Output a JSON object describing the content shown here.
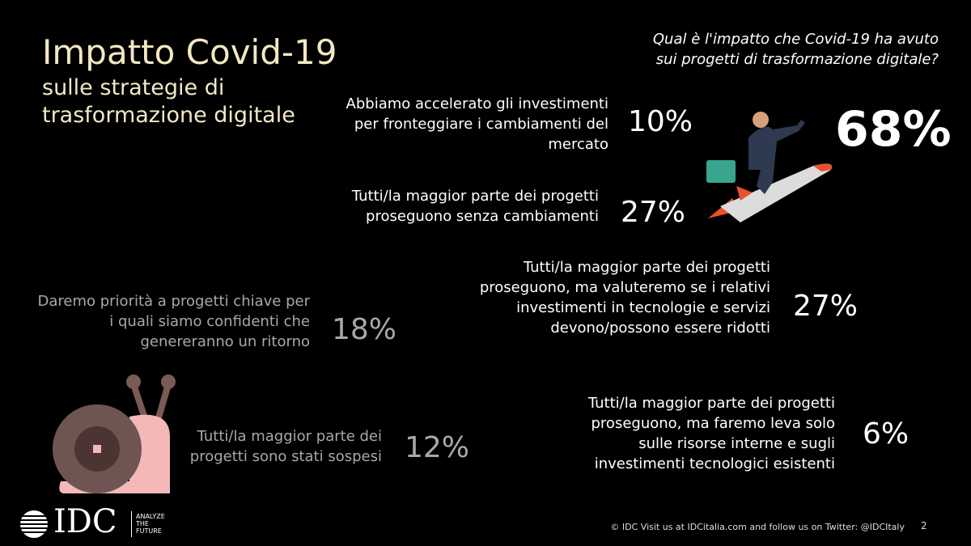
{
  "title": "Impatto Covid-19",
  "subtitle": [
    "sulle strategie di",
    "trasformazione digitale"
  ],
  "question": [
    "Qual è l'impatto che Covid-19 ha avuto",
    "sui progetti di trasformazione digitale?"
  ],
  "total": "68%",
  "items": [
    {
      "lines": [
        "Abbiamo accelerato gli investimenti",
        "per fronteggiare i cambiamenti del",
        "mercato"
      ],
      "pct": "10%"
    },
    {
      "lines": [
        "Tutti/la maggior parte dei progetti",
        "proseguono senza cambiamenti"
      ],
      "pct": "27%"
    },
    {
      "lines": [
        "Tutti/la maggior parte dei progetti",
        "proseguono, ma valuteremo se i relativi",
        "investimenti in tecnologie e servizi",
        "devono/possono essere ridotti"
      ],
      "pct": "27%"
    },
    {
      "lines": [
        "Daremo priorità a progetti chiave per",
        "i quali siamo confidenti che",
        "genereranno un ritorno"
      ],
      "pct": "18%"
    },
    {
      "lines": [
        "Tutti/la maggior parte dei",
        "progetti sono stati sospesi"
      ],
      "pct": "12%"
    },
    {
      "lines": [
        "Tutti/la maggior parte dei progetti",
        "proseguono, ma faremo leva solo",
        "sulle risorse interne e sugli",
        "investimenti tecnologici esistenti"
      ],
      "pct": "6%"
    }
  ],
  "logo": {
    "name": "IDC",
    "tagline": [
      "ANALYZE",
      "THE",
      "FUTURE"
    ]
  },
  "footer": "© IDC Visit us at IDCitalia.com and follow us on Twitter: @IDCItaly",
  "page": "2"
}
